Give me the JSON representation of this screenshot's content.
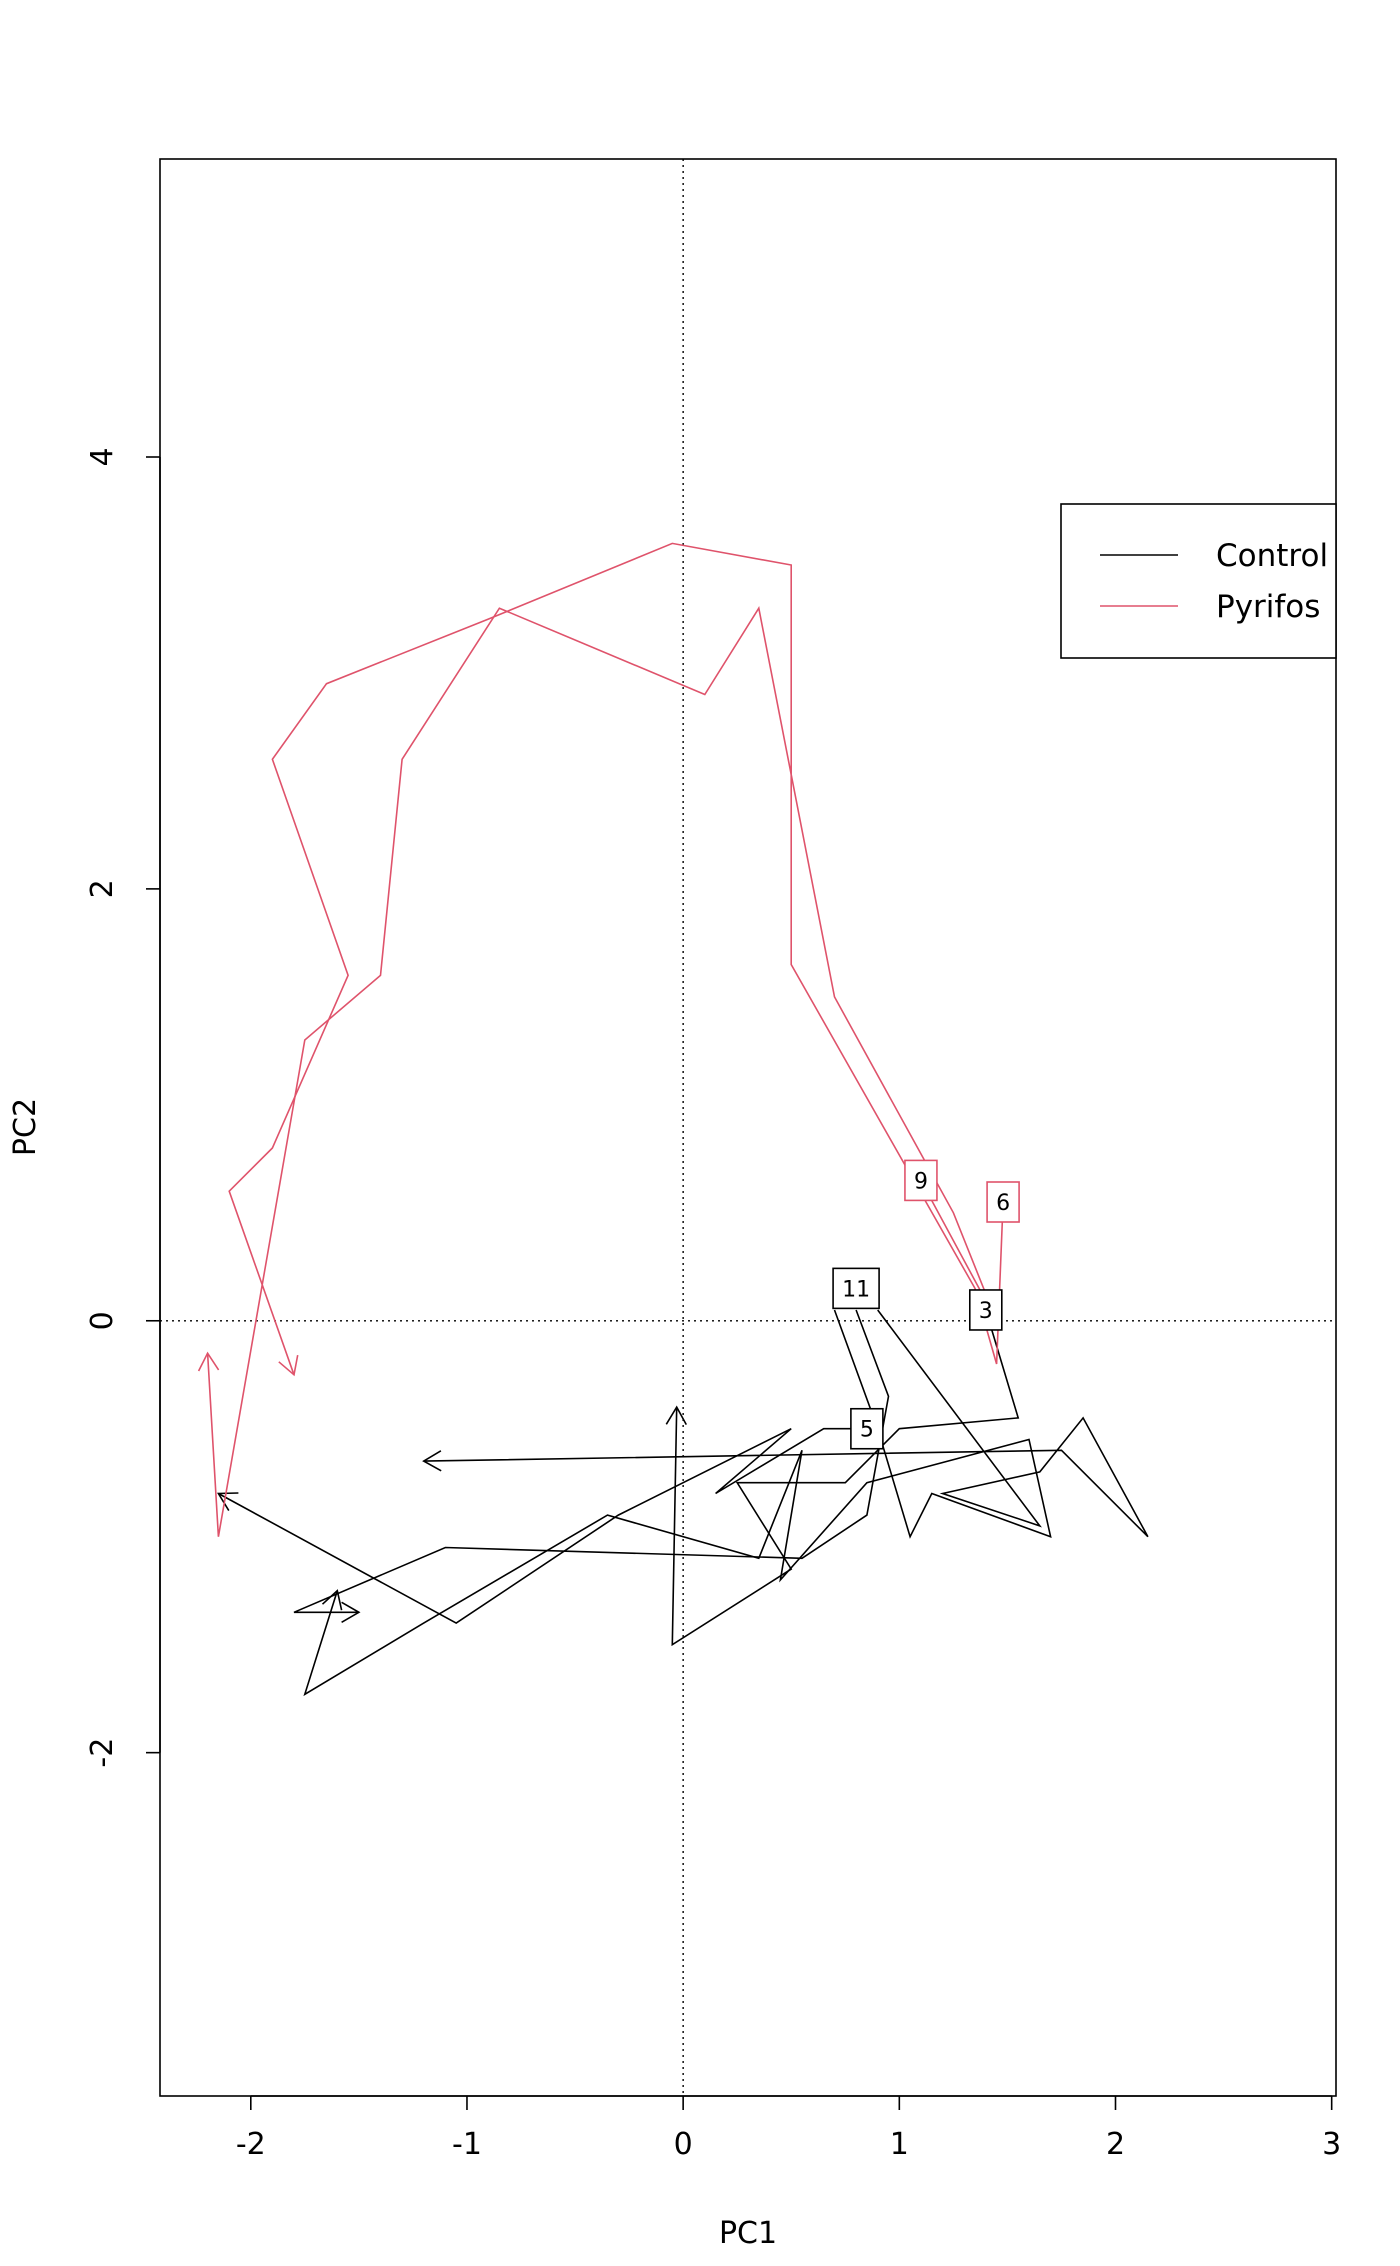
{
  "chart_data": {
    "type": "line",
    "xlabel": "PC1",
    "ylabel": "PC2",
    "xlim": [
      -2.42,
      3.02
    ],
    "ylim": [
      -3.59,
      5.38
    ],
    "xticks": [
      -2,
      -1,
      0,
      1,
      2,
      3
    ],
    "yticks": [
      -2,
      0,
      2,
      4
    ],
    "reference_lines": {
      "x": 0,
      "y": 0,
      "style": "dotted"
    },
    "grid": false,
    "legend": {
      "position": "top-right",
      "entries": [
        {
          "name": "Control",
          "color": "#000000"
        },
        {
          "name": "Pyrifos",
          "color": "#DF536B"
        }
      ]
    },
    "series": [
      {
        "name": "Control",
        "color": "#000000",
        "paths": [
          {
            "label": "11",
            "label_at": [
              0.8,
              0.15
            ],
            "arrow": true,
            "points": [
              [
                0.7,
                0.05
              ],
              [
                0.9,
                -0.5
              ],
              [
                1.05,
                -1.0
              ],
              [
                1.15,
                -0.8
              ],
              [
                1.7,
                -1.0
              ],
              [
                1.6,
                -0.55
              ],
              [
                0.85,
                -0.75
              ],
              [
                0.45,
                -1.2
              ],
              [
                0.55,
                -0.6
              ],
              [
                0.35,
                -1.1
              ],
              [
                -0.35,
                -0.9
              ],
              [
                -1.2,
                -1.4
              ],
              [
                -1.75,
                -1.73
              ],
              [
                -1.6,
                -1.25
              ]
            ]
          },
          {
            "label": "3",
            "label_at": [
              1.4,
              0.05
            ],
            "arrow": true,
            "points": [
              [
                1.4,
                0.05
              ],
              [
                1.55,
                -0.45
              ],
              [
                1.0,
                -0.5
              ],
              [
                0.75,
                -0.75
              ],
              [
                0.25,
                -0.75
              ],
              [
                0.5,
                -1.15
              ],
              [
                -0.05,
                -1.5
              ],
              [
                -0.03,
                -0.4
              ]
            ]
          },
          {
            "label": "5",
            "label_at": [
              0.85,
              -0.5
            ],
            "arrow": true,
            "points": [
              [
                0.85,
                -0.5
              ],
              [
                0.65,
                -0.5
              ],
              [
                0.15,
                -0.8
              ],
              [
                0.5,
                -0.5
              ],
              [
                -0.3,
                -0.9
              ],
              [
                -1.05,
                -1.4
              ],
              [
                -2.15,
                -0.8
              ]
            ]
          },
          {
            "label": "",
            "label_at": null,
            "arrow": true,
            "points": [
              [
                0.8,
                0.05
              ],
              [
                0.95,
                -0.35
              ],
              [
                0.85,
                -0.9
              ],
              [
                0.55,
                -1.1
              ],
              [
                -1.1,
                -1.05
              ],
              [
                -1.8,
                -1.35
              ],
              [
                -1.5,
                -1.35
              ]
            ]
          },
          {
            "label": "",
            "label_at": null,
            "arrow": true,
            "points": [
              [
                0.9,
                0.05
              ],
              [
                1.65,
                -0.95
              ],
              [
                1.2,
                -0.8
              ],
              [
                1.65,
                -0.7
              ],
              [
                1.85,
                -0.45
              ],
              [
                2.15,
                -1.0
              ],
              [
                1.75,
                -0.6
              ],
              [
                -1.2,
                -0.65
              ]
            ]
          }
        ]
      },
      {
        "name": "Pyrifos",
        "color": "#DF536B",
        "paths": [
          {
            "label": "9",
            "label_at": [
              1.1,
              0.65
            ],
            "arrow": true,
            "points": [
              [
                1.1,
                0.65
              ],
              [
                1.45,
                0.0
              ],
              [
                1.25,
                0.5
              ],
              [
                0.7,
                1.5
              ],
              [
                0.35,
                3.3
              ],
              [
                0.1,
                2.9
              ],
              [
                -0.85,
                3.3
              ],
              [
                -1.3,
                2.6
              ],
              [
                -1.4,
                1.6
              ],
              [
                -1.75,
                1.3
              ],
              [
                -2.15,
                -1.0
              ],
              [
                -2.2,
                -0.15
              ]
            ]
          },
          {
            "label": "6",
            "label_at": [
              1.48,
              0.55
            ],
            "arrow": true,
            "points": [
              [
                1.48,
                0.55
              ],
              [
                1.45,
                -0.2
              ],
              [
                1.35,
                0.15
              ],
              [
                0.5,
                1.65
              ],
              [
                0.5,
                3.5
              ],
              [
                -0.05,
                3.6
              ],
              [
                -0.9,
                3.25
              ],
              [
                -1.65,
                2.95
              ],
              [
                -1.9,
                2.6
              ],
              [
                -1.55,
                1.6
              ],
              [
                -1.9,
                0.8
              ],
              [
                -2.1,
                0.6
              ],
              [
                -1.8,
                -0.25
              ]
            ]
          }
        ]
      }
    ]
  }
}
